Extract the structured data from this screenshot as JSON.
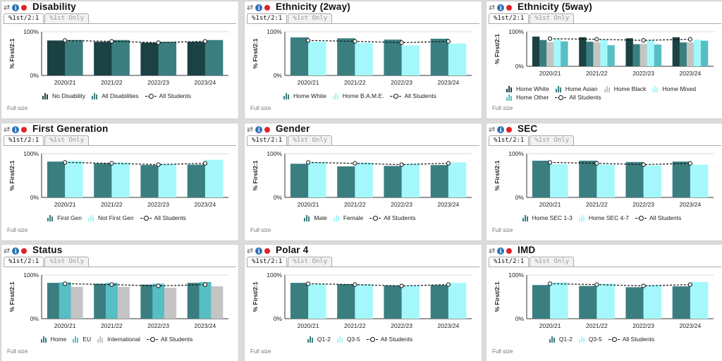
{
  "ui": {
    "tab_active": "%1st/2:1",
    "tab_inactive": "%1st Only",
    "full_size": "Full size",
    "all_students": "All Students",
    "ylabel": "% First/2:1",
    "ytick_top": "100%",
    "ytick_bottom": "0%"
  },
  "colors": {
    "dark": "#1b4143",
    "teal": "#3a7e80",
    "cyan": "#a4f8fb",
    "light_teal": "#57bec4",
    "gray": "#c4c4c4",
    "line": "#111111"
  },
  "chart_data": [
    {
      "type": "bar",
      "title": "Disability",
      "categories": [
        "2020/21",
        "2021/22",
        "2022/23",
        "2023/24"
      ],
      "ylim": [
        0,
        100
      ],
      "series": [
        {
          "name": "No Disability",
          "color": "dark",
          "values": [
            80,
            77,
            75,
            77
          ]
        },
        {
          "name": "All Disabilities",
          "color": "teal",
          "values": [
            81,
            81,
            77,
            81
          ]
        }
      ],
      "line": {
        "name": "All Students",
        "values": [
          80,
          78,
          75,
          78
        ]
      }
    },
    {
      "type": "bar",
      "title": "Ethnicity (2way)",
      "categories": [
        "2020/21",
        "2021/22",
        "2022/23",
        "2023/24"
      ],
      "ylim": [
        0,
        100
      ],
      "series": [
        {
          "name": "Home White",
          "color": "teal",
          "values": [
            87,
            85,
            82,
            84
          ]
        },
        {
          "name": "Home B.A.M.E.",
          "color": "cyan",
          "values": [
            77,
            74,
            69,
            73
          ]
        }
      ],
      "line": {
        "name": "All Students",
        "values": [
          80,
          78,
          75,
          78
        ]
      }
    },
    {
      "type": "bar",
      "title": "Ethnicity (5way)",
      "categories": [
        "2020/21",
        "2021/22",
        "2022/23",
        "2023/24"
      ],
      "ylim": [
        0,
        100
      ],
      "series": [
        {
          "name": "Home White",
          "color": "dark",
          "values": [
            86,
            84,
            81,
            84
          ]
        },
        {
          "name": "Home Asian",
          "color": "teal",
          "values": [
            76,
            71,
            64,
            69
          ]
        },
        {
          "name": "Home Black",
          "color": "gray",
          "values": [
            70,
            69,
            65,
            69
          ]
        },
        {
          "name": "Home Mixed",
          "color": "cyan",
          "values": [
            80,
            78,
            75,
            77
          ]
        },
        {
          "name": "Home Other",
          "color": "light_teal",
          "values": [
            72,
            61,
            63,
            74
          ]
        }
      ],
      "line": {
        "name": "All Students",
        "values": [
          80,
          78,
          75,
          78
        ]
      }
    },
    {
      "type": "bar",
      "title": "First Generation",
      "categories": [
        "2020/21",
        "2021/22",
        "2022/23",
        "2023/24"
      ],
      "ylim": [
        0,
        100
      ],
      "series": [
        {
          "name": "First Gen",
          "color": "teal",
          "values": [
            82,
            78,
            74,
            75
          ]
        },
        {
          "name": "Not First Gen",
          "color": "cyan",
          "values": [
            84,
            80,
            77,
            86
          ]
        }
      ],
      "line": {
        "name": "All Students",
        "values": [
          80,
          78,
          75,
          78
        ]
      }
    },
    {
      "type": "bar",
      "title": "Gender",
      "categories": [
        "2020/21",
        "2021/22",
        "2022/23",
        "2023/24"
      ],
      "ylim": [
        0,
        100
      ],
      "series": [
        {
          "name": "Male",
          "color": "teal",
          "values": [
            77,
            71,
            72,
            74
          ]
        },
        {
          "name": "Female",
          "color": "cyan",
          "values": [
            81,
            80,
            77,
            80
          ]
        }
      ],
      "line": {
        "name": "All Students",
        "values": [
          80,
          78,
          75,
          78
        ]
      }
    },
    {
      "type": "bar",
      "title": "SEC",
      "categories": [
        "2020/21",
        "2021/22",
        "2022/23",
        "2023/24"
      ],
      "ylim": [
        0,
        100
      ],
      "series": [
        {
          "name": "Home SEC 1-3",
          "color": "teal",
          "values": [
            84,
            84,
            81,
            82
          ]
        },
        {
          "name": "Home SEC 4-7",
          "color": "cyan",
          "values": [
            76,
            75,
            73,
            75
          ]
        }
      ],
      "line": {
        "name": "All Students",
        "values": [
          80,
          78,
          75,
          78
        ]
      }
    },
    {
      "type": "bar",
      "title": "Status",
      "categories": [
        "2020/21",
        "2021/22",
        "2022/23",
        "2023/24"
      ],
      "ylim": [
        0,
        100
      ],
      "series": [
        {
          "name": "Home",
          "color": "teal",
          "values": [
            82,
            80,
            78,
            82
          ]
        },
        {
          "name": "EU",
          "color": "light_teal",
          "values": [
            83,
            82,
            80,
            84
          ]
        },
        {
          "name": "International",
          "color": "gray",
          "values": [
            73,
            73,
            71,
            74
          ]
        }
      ],
      "line": {
        "name": "All Students",
        "values": [
          80,
          78,
          75,
          78
        ]
      }
    },
    {
      "type": "bar",
      "title": "Polar 4",
      "categories": [
        "2020/21",
        "2021/22",
        "2022/23",
        "2023/24"
      ],
      "ylim": [
        0,
        100
      ],
      "series": [
        {
          "name": "Q1-2",
          "color": "teal",
          "values": [
            82,
            79,
            76,
            77
          ]
        },
        {
          "name": "Q3-5",
          "color": "cyan",
          "values": [
            79,
            79,
            76,
            82
          ]
        }
      ],
      "line": {
        "name": "All Students",
        "values": [
          80,
          78,
          75,
          78
        ]
      }
    },
    {
      "type": "bar",
      "title": "IMD",
      "categories": [
        "2020/21",
        "2021/22",
        "2022/23",
        "2023/24"
      ],
      "ylim": [
        0,
        100
      ],
      "series": [
        {
          "name": "Q1-2",
          "color": "teal",
          "values": [
            77,
            75,
            72,
            74
          ]
        },
        {
          "name": "Q3-5",
          "color": "cyan",
          "values": [
            83,
            80,
            77,
            84
          ]
        }
      ],
      "line": {
        "name": "All Students",
        "values": [
          80,
          78,
          75,
          78
        ]
      }
    }
  ]
}
